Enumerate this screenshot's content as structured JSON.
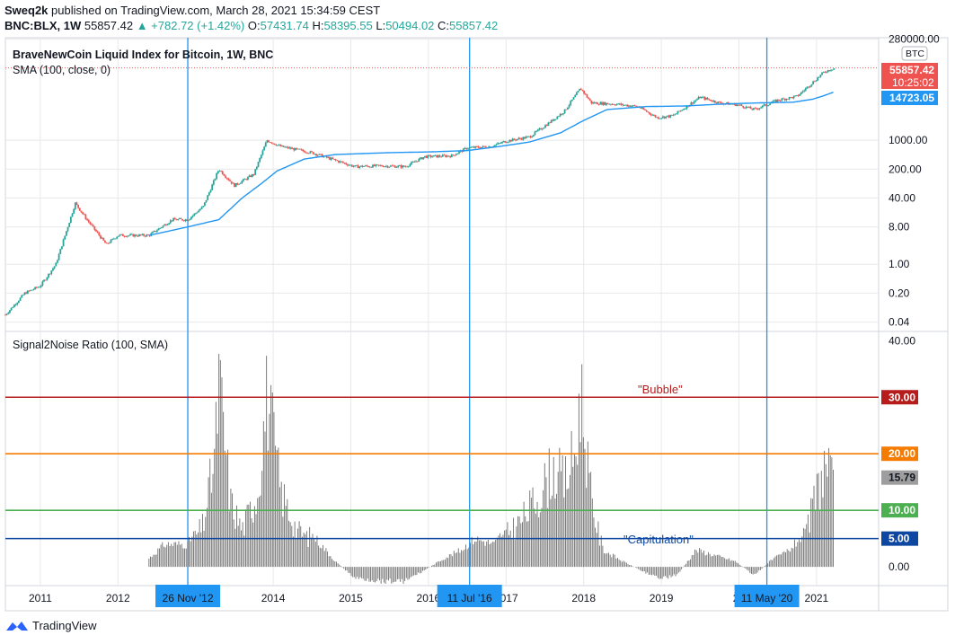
{
  "header": {
    "author": "Sweq2k",
    "published_text": "published on TradingView.com, March 28, 2021 15:34:59 CEST",
    "symbol": "BNC:BLX, 1W",
    "price": "55857.42",
    "change": "▲ +782.72 (+1.42%)",
    "o_label": "O:",
    "o_value": "57431.74",
    "h_label": "H:",
    "h_value": "58395.55",
    "l_label": "L:",
    "l_value": "50494.02",
    "c_label": "C:",
    "c_value": "55857.42"
  },
  "footer": {
    "brand": "TradingView"
  },
  "colors": {
    "up": "#26a69a",
    "down": "#ef5350",
    "sma": "#2196f3",
    "vline": "#2196f3",
    "bubble": "#b71c1c",
    "l20": "#f57c00",
    "l10": "#4caf50",
    "l5": "#0d47a1",
    "bars": "#6d6d6d",
    "grid": "#e8e8e8"
  },
  "chart_data": [
    {
      "type": "candlestick",
      "title": "BraveNewCoin Liquid Index for Bitcoin, 1W, BNC",
      "indicator_label": "SMA (100, close, 0)",
      "yscale": "log",
      "yticks": [
        "280000.00",
        "1000.00",
        "200.00",
        "40.00",
        "8.00",
        "1.00",
        "0.20",
        "0.04"
      ],
      "ytick_values": [
        280000,
        1000,
        200,
        40,
        8,
        1,
        0.2,
        0.04
      ],
      "ylim": [
        0.025,
        300000
      ],
      "price_axis_label": "BTC",
      "last_price": "55857.42",
      "countdown": "10:25:02",
      "sma_last": "14723.05",
      "price_anchors": [
        [
          2010.55,
          0.06
        ],
        [
          2010.8,
          0.2
        ],
        [
          2011.0,
          0.3
        ],
        [
          2011.2,
          1.0
        ],
        [
          2011.45,
          30
        ],
        [
          2011.6,
          12
        ],
        [
          2011.85,
          3
        ],
        [
          2012.0,
          5
        ],
        [
          2012.4,
          5
        ],
        [
          2012.7,
          12
        ],
        [
          2012.9,
          12
        ],
        [
          2013.1,
          25
        ],
        [
          2013.3,
          200
        ],
        [
          2013.5,
          80
        ],
        [
          2013.75,
          150
        ],
        [
          2013.92,
          1000
        ],
        [
          2014.1,
          700
        ],
        [
          2014.5,
          500
        ],
        [
          2014.75,
          350
        ],
        [
          2015.05,
          230
        ],
        [
          2015.4,
          240
        ],
        [
          2015.7,
          230
        ],
        [
          2015.95,
          400
        ],
        [
          2016.3,
          420
        ],
        [
          2016.5,
          650
        ],
        [
          2016.8,
          700
        ],
        [
          2017.0,
          950
        ],
        [
          2017.3,
          1200
        ],
        [
          2017.55,
          2600
        ],
        [
          2017.75,
          5000
        ],
        [
          2017.96,
          18000
        ],
        [
          2018.1,
          8000
        ],
        [
          2018.4,
          7500
        ],
        [
          2018.7,
          6500
        ],
        [
          2018.95,
          3500
        ],
        [
          2019.15,
          3900
        ],
        [
          2019.5,
          11000
        ],
        [
          2019.75,
          8000
        ],
        [
          2019.98,
          7200
        ],
        [
          2020.2,
          5500
        ],
        [
          2020.5,
          9300
        ],
        [
          2020.75,
          11500
        ],
        [
          2020.95,
          25000
        ],
        [
          2021.1,
          45000
        ],
        [
          2021.23,
          55857.42
        ]
      ],
      "sma_anchors": [
        [
          2012.4,
          5
        ],
        [
          2012.9,
          8
        ],
        [
          2013.3,
          12
        ],
        [
          2013.6,
          40
        ],
        [
          2013.85,
          90
        ],
        [
          2014.05,
          180
        ],
        [
          2014.4,
          350
        ],
        [
          2014.8,
          450
        ],
        [
          2015.5,
          500
        ],
        [
          2016.0,
          520
        ],
        [
          2016.5,
          560
        ],
        [
          2016.9,
          700
        ],
        [
          2017.3,
          900
        ],
        [
          2017.7,
          1500
        ],
        [
          2018.0,
          3000
        ],
        [
          2018.3,
          5500
        ],
        [
          2018.8,
          6500
        ],
        [
          2019.3,
          6700
        ],
        [
          2019.8,
          7500
        ],
        [
          2020.3,
          8000
        ],
        [
          2020.7,
          8300
        ],
        [
          2020.95,
          9800
        ],
        [
          2021.1,
          12000
        ],
        [
          2021.23,
          14723.05
        ]
      ]
    },
    {
      "type": "bar",
      "title": "Signal2Noise Ratio (100, SMA)",
      "yticks": [
        "40.00",
        "0.00"
      ],
      "ytick_values": [
        40,
        0
      ],
      "ylim": [
        -3,
        41
      ],
      "levels": [
        {
          "name": "\"Bubble\"",
          "value": 30,
          "label": "30.00",
          "color_key": "bubble"
        },
        {
          "name": "",
          "value": 20,
          "label": "20.00",
          "color_key": "l20"
        },
        {
          "name": "",
          "value": 10,
          "label": "10.00",
          "color_key": "l10"
        },
        {
          "name": "\"Capitulation\"",
          "value": 5,
          "label": "5.00",
          "color_key": "l5"
        }
      ],
      "last_value": "15.79",
      "bar_anchors": [
        [
          2012.4,
          1.5
        ],
        [
          2012.6,
          4
        ],
        [
          2012.9,
          4
        ],
        [
          2013.1,
          9
        ],
        [
          2013.25,
          24
        ],
        [
          2013.3,
          40
        ],
        [
          2013.45,
          14
        ],
        [
          2013.6,
          8
        ],
        [
          2013.8,
          16
        ],
        [
          2013.92,
          37
        ],
        [
          2014.1,
          16
        ],
        [
          2014.3,
          8
        ],
        [
          2014.55,
          5
        ],
        [
          2014.8,
          1
        ],
        [
          2015.05,
          -2
        ],
        [
          2015.4,
          -2.5
        ],
        [
          2015.7,
          -2.5
        ],
        [
          2015.9,
          -1
        ],
        [
          2016.2,
          1.5
        ],
        [
          2016.42,
          3
        ],
        [
          2016.6,
          5
        ],
        [
          2016.85,
          4
        ],
        [
          2017.0,
          7
        ],
        [
          2017.2,
          10
        ],
        [
          2017.45,
          16
        ],
        [
          2017.6,
          21
        ],
        [
          2017.75,
          18
        ],
        [
          2017.9,
          25
        ],
        [
          2017.96,
          38
        ],
        [
          2018.1,
          14
        ],
        [
          2018.25,
          3
        ],
        [
          2018.5,
          1
        ],
        [
          2018.8,
          -1
        ],
        [
          2019.0,
          -2
        ],
        [
          2019.2,
          -1.5
        ],
        [
          2019.45,
          3
        ],
        [
          2019.7,
          2
        ],
        [
          2019.95,
          1
        ],
        [
          2020.2,
          -1.5
        ],
        [
          2020.4,
          1
        ],
        [
          2020.65,
          3
        ],
        [
          2020.85,
          6
        ],
        [
          2021.0,
          16
        ],
        [
          2021.12,
          22
        ],
        [
          2021.23,
          15.79
        ]
      ],
      "xticks": [
        "2011",
        "2012",
        "2014",
        "2015",
        "2016",
        "2017",
        "2018",
        "2019",
        "20",
        "2021"
      ],
      "xtick_values": [
        2011.0,
        2012.0,
        2014.0,
        2015.0,
        2016.0,
        2017.0,
        2018.0,
        2019.0,
        2020.0,
        2021.0
      ],
      "xlim": [
        2010.55,
        2021.8
      ],
      "vertical_markers": [
        {
          "label": "26 Nov '12",
          "x": 2012.9
        },
        {
          "label": "11 Jul '16",
          "x": 2016.53
        },
        {
          "label": "11 May '20",
          "x": 2020.36
        }
      ]
    }
  ]
}
